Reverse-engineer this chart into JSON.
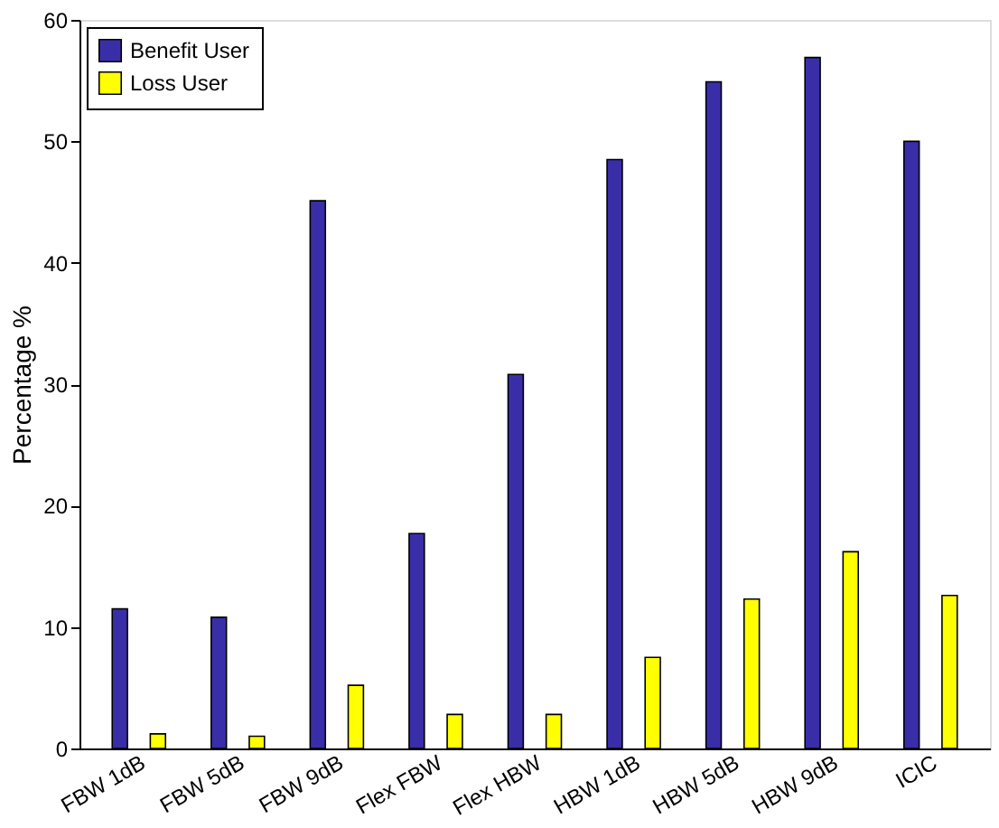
{
  "chart_data": {
    "type": "bar",
    "ylabel": "Percentage %",
    "categories": [
      "FBW 1dB",
      "FBW 5dB",
      "FBW 9dB",
      "Flex FBW",
      "Flex HBW",
      "HBW 1dB",
      "HBW 5dB",
      "HBW 9dB",
      "ICIC"
    ],
    "series": [
      {
        "name": "Benefit User",
        "color": "#3a2ea8",
        "values": [
          11.5,
          10.8,
          45.1,
          17.7,
          30.8,
          48.5,
          54.9,
          56.9,
          50.0
        ]
      },
      {
        "name": "Loss User",
        "color": "#ffff00",
        "values": [
          1.2,
          1.0,
          5.2,
          2.8,
          2.8,
          7.5,
          12.3,
          16.2,
          12.6
        ]
      }
    ],
    "ylim": [
      0,
      60
    ],
    "yticks": [
      0,
      10,
      20,
      30,
      40,
      50,
      60
    ],
    "grid": false,
    "legend": "top left"
  }
}
